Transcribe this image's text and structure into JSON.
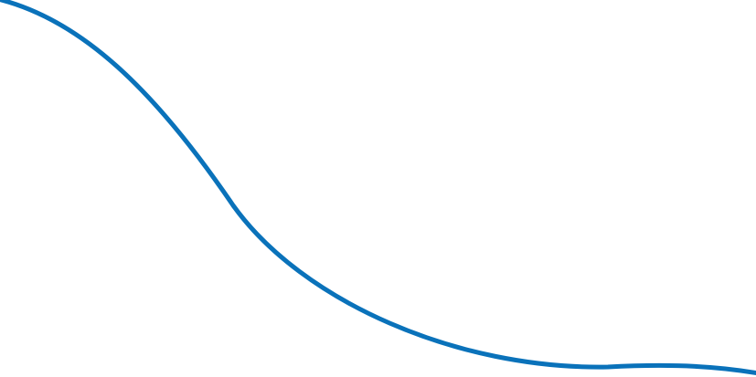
{
  "decoration": {
    "curve_color": "#0a72ba"
  }
}
